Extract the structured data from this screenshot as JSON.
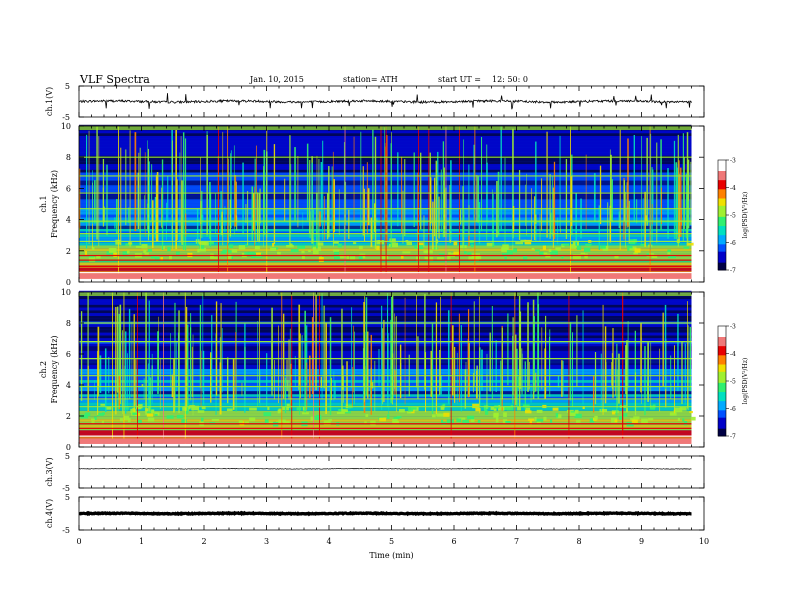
{
  "header": {
    "title": "VLF  Spectra",
    "date": "Jan. 10, 2015",
    "station": "station= ATH",
    "start_label": "start  UT  =",
    "start_time": "12: 50: 0"
  },
  "colors": {
    "trace": "#000000",
    "colorscale": [
      "#000044",
      "#0000c8",
      "#0050ff",
      "#00aaff",
      "#00e0c0",
      "#30f070",
      "#a0f030",
      "#f0e000",
      "#ff8000",
      "#e80000",
      "#f07878",
      "#ffffff"
    ]
  },
  "chart_data": [
    {
      "type": "line",
      "panel": "ch1-waveform",
      "ylabel": "ch.1(V)",
      "ylim": [
        -5,
        5
      ],
      "yticks": [
        "5",
        "-5"
      ],
      "xlim": [
        0,
        10
      ],
      "approx_mean_volts": 0.0,
      "approx_envelope_volts": 0.6
    },
    {
      "type": "heatmap",
      "panel": "ch1-spectrogram",
      "ylabel": "ch.1 Frequency (kHz)",
      "ylim": [
        0,
        10
      ],
      "yticks": [
        "0",
        "2",
        "4",
        "6",
        "8",
        "10"
      ],
      "xlim": [
        0,
        10
      ],
      "colorbar": {
        "label": "log(PSD(V²/Hz)",
        "range": [
          -7,
          -3
        ],
        "ticks": [
          "-3",
          "-4",
          "-5",
          "-6",
          "-7"
        ]
      },
      "description_bands_khz": [
        0.3,
        0.6,
        1.0,
        1.4,
        1.7,
        2.6,
        3.1,
        3.9,
        4.7,
        5.7,
        6.8,
        8.0
      ]
    },
    {
      "type": "heatmap",
      "panel": "ch2-spectrogram",
      "ylabel": "ch.2 Frequency (kHz)",
      "ylim": [
        0,
        10
      ],
      "yticks": [
        "0",
        "2",
        "4",
        "6",
        "8",
        "10"
      ],
      "xlim": [
        0,
        10
      ],
      "colorbar": {
        "label": "log(PSD(V²/Hz)",
        "range": [
          -7,
          -3
        ],
        "ticks": [
          "-3",
          "-4",
          "-5",
          "-6",
          "-7"
        ]
      },
      "description_bands_khz": [
        0.3,
        0.7,
        1.2,
        1.5,
        2.6,
        3.1,
        3.9,
        4.6,
        5.7,
        6.8,
        8.0
      ]
    },
    {
      "type": "line",
      "panel": "ch3-waveform",
      "ylabel": "ch.3(V)",
      "ylim": [
        -5,
        5
      ],
      "yticks": [
        "5",
        "-5"
      ],
      "xlim": [
        0,
        10
      ],
      "approx_mean_volts": 1.0,
      "approx_envelope_volts": 0.15
    },
    {
      "type": "line",
      "panel": "ch4-waveform",
      "ylabel": "ch.4(V)",
      "ylim": [
        -5,
        5
      ],
      "yticks": [
        "5",
        "-5"
      ],
      "xlim": [
        0,
        10
      ],
      "approx_mean_volts": 0.0,
      "approx_envelope_volts": 0.2,
      "xlabel": "Time  (min)",
      "xticks": [
        "0",
        "1",
        "2",
        "3",
        "4",
        "5",
        "6",
        "7",
        "8",
        "9",
        "10"
      ],
      "data_end_min": 9.8
    }
  ]
}
